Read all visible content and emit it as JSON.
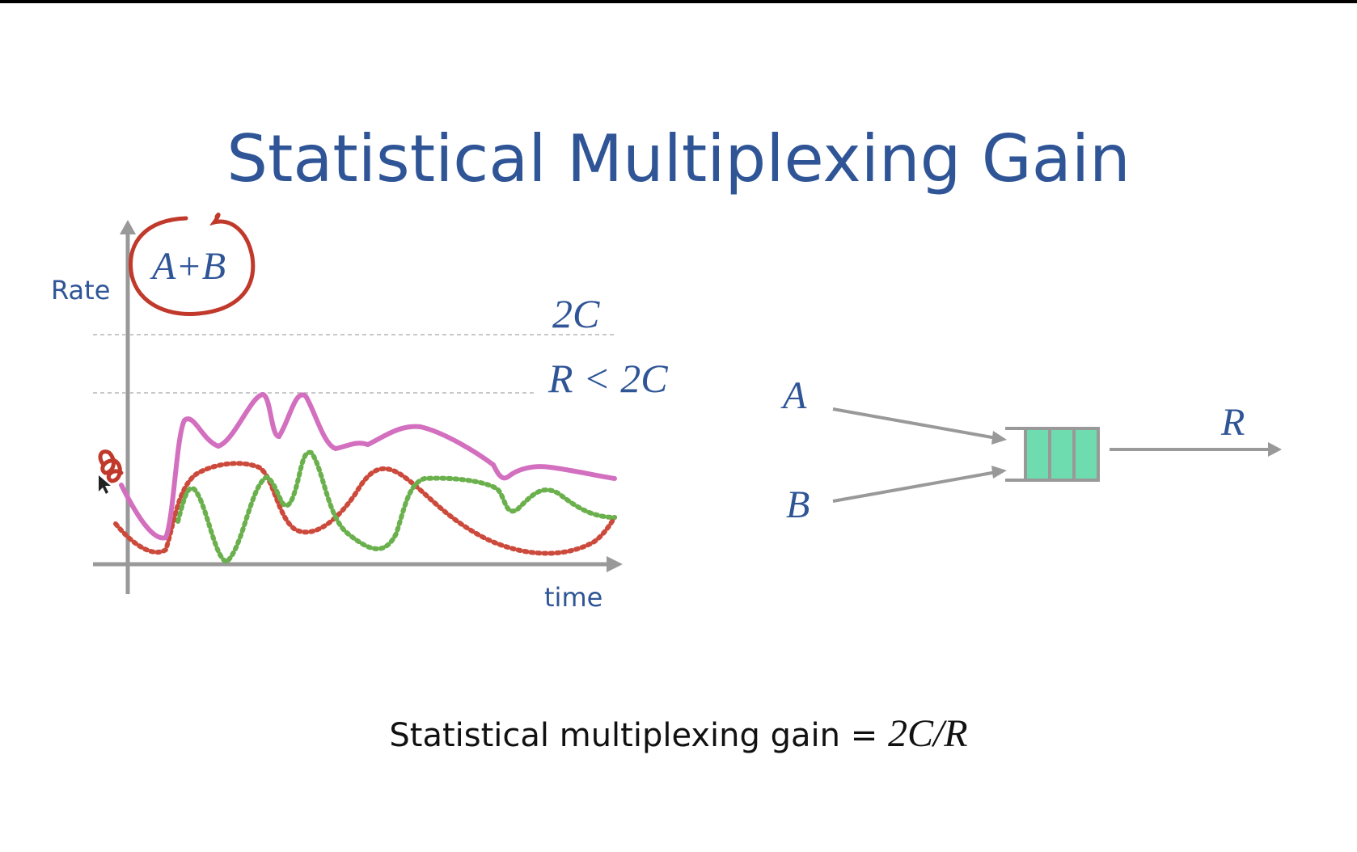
{
  "slide": {
    "title": "Statistical Multiplexing Gain",
    "footer_text": "Statistical multiplexing gain = ",
    "footer_math": "2C/R"
  },
  "graph": {
    "y_axis_label": "Rate",
    "x_axis_label": "time",
    "annotation_circled": "A+B",
    "level_2c": "2C",
    "level_r": "R < 2C"
  },
  "queue_diagram": {
    "input_a": "A",
    "input_b": "B",
    "output": "R"
  },
  "colors": {
    "title": "#2f5597",
    "sum_line": "#d36fbf",
    "flow_a": "#cc4a3c",
    "flow_b": "#6ab04c",
    "annotation_red": "#c0392b",
    "queue_fill": "#6fdcb0",
    "axis": "#999999"
  }
}
